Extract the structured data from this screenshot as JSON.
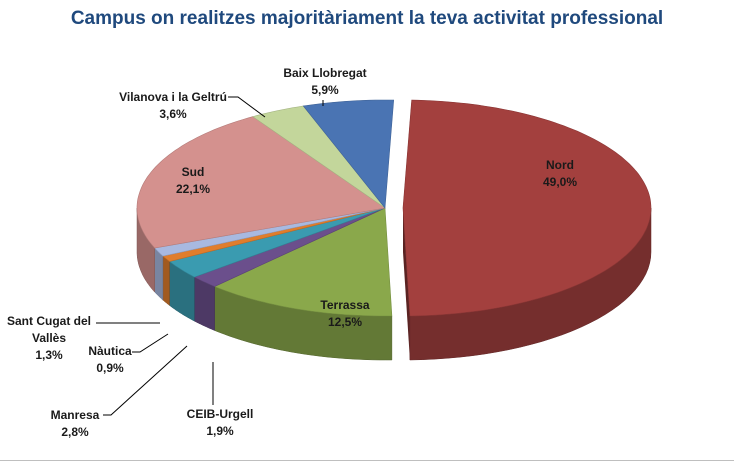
{
  "chart_data": {
    "type": "pie",
    "title": "Campus on realitzes majoritàriament la teva activitat professional",
    "slices": [
      {
        "label": "Nord",
        "value": 49.0,
        "value_label": "49,0%",
        "color": "#a3403e",
        "exploded": true
      },
      {
        "label": "Terrassa",
        "value": 12.5,
        "value_label": "12,5%",
        "color": "#8aa84b"
      },
      {
        "label": "CEIB-Urgell",
        "value": 1.9,
        "value_label": "1,9%",
        "color": "#6b4f8c"
      },
      {
        "label": "Manresa",
        "value": 2.8,
        "value_label": "2,8%",
        "color": "#3a9bb0"
      },
      {
        "label": "Nàutica",
        "value": 0.9,
        "value_label": "0,9%",
        "color": "#e07d2c"
      },
      {
        "label": "Sant Cugat del Vallès",
        "value": 1.3,
        "value_label": "1,3%",
        "color": "#a8b9e0"
      },
      {
        "label": "Sud",
        "value": 22.1,
        "value_label": "22,1%",
        "color": "#d4918e"
      },
      {
        "label": "Vilanova i la Geltrú",
        "value": 3.6,
        "value_label": "3,6%",
        "color": "#c3d69b"
      },
      {
        "label": "Baix Llobregat",
        "value": 5.9,
        "value_label": "5,9%",
        "color": "#4a74b3"
      }
    ]
  }
}
